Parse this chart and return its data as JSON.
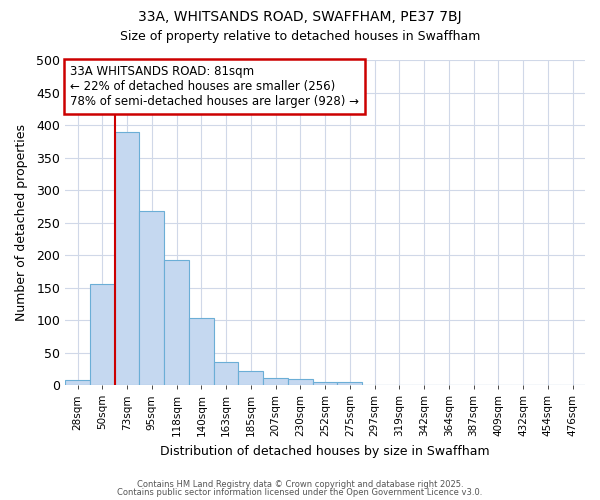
{
  "title1": "33A, WHITSANDS ROAD, SWAFFHAM, PE37 7BJ",
  "title2": "Size of property relative to detached houses in Swaffham",
  "xlabel": "Distribution of detached houses by size in Swaffham",
  "ylabel": "Number of detached properties",
  "categories": [
    "28sqm",
    "50sqm",
    "73sqm",
    "95sqm",
    "118sqm",
    "140sqm",
    "163sqm",
    "185sqm",
    "207sqm",
    "230sqm",
    "252sqm",
    "275sqm",
    "297sqm",
    "319sqm",
    "342sqm",
    "364sqm",
    "387sqm",
    "409sqm",
    "432sqm",
    "454sqm",
    "476sqm"
  ],
  "values": [
    7,
    155,
    390,
    268,
    192,
    103,
    35,
    21,
    11,
    9,
    5,
    4,
    0,
    0,
    0,
    0,
    0,
    0,
    0,
    0,
    0
  ],
  "bar_color": "#c5d8f0",
  "bar_edge_color": "#6baed6",
  "background_color": "#ffffff",
  "plot_bg_color": "#ffffff",
  "grid_color": "#d0d8e8",
  "red_line_index": 2,
  "annotation_text": "33A WHITSANDS ROAD: 81sqm\n← 22% of detached houses are smaller (256)\n78% of semi-detached houses are larger (928) →",
  "annotation_box_color": "#ffffff",
  "annotation_border_color": "#cc0000",
  "footer1": "Contains HM Land Registry data © Crown copyright and database right 2025.",
  "footer2": "Contains public sector information licensed under the Open Government Licence v3.0.",
  "ylim": [
    0,
    500
  ],
  "yticks": [
    0,
    50,
    100,
    150,
    200,
    250,
    300,
    350,
    400,
    450,
    500
  ]
}
